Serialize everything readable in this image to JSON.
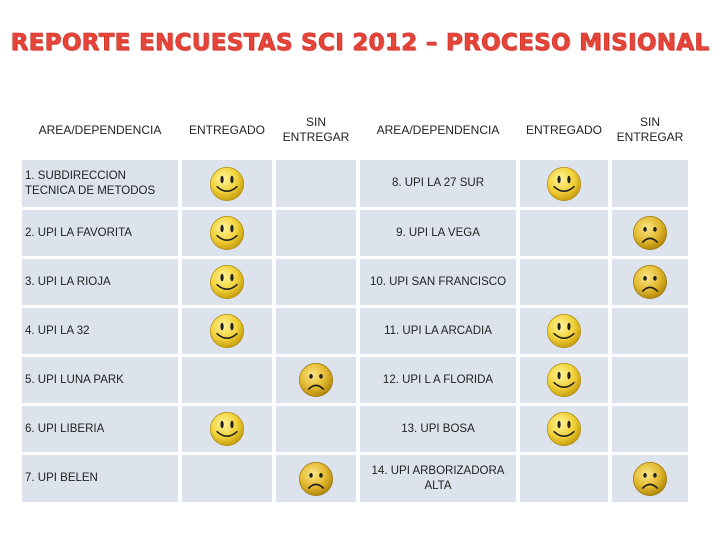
{
  "title": "REPORTE ENCUESTAS SCI 2012 – PROCESO MISIONAL",
  "headers": {
    "area": "AREA/DEPENDENCIA",
    "entregado": "ENTREGADO",
    "sin_entregar_1": "SIN",
    "sin_entregar_2": "ENTREGAR"
  },
  "rows": [
    {
      "left": {
        "area": "1. SUBDIRECCION TECNICA DE METODOS",
        "status": "entregado"
      },
      "right": {
        "area": "8. UPI LA 27 SUR",
        "status": "entregado"
      }
    },
    {
      "left": {
        "area": "2. UPI LA FAVORITA",
        "status": "entregado"
      },
      "right": {
        "area": "9. UPI LA VEGA",
        "status": "sin_entregar"
      }
    },
    {
      "left": {
        "area": "3. UPI LA RIOJA",
        "status": "entregado"
      },
      "right": {
        "area": "10. UPI SAN FRANCISCO",
        "status": "sin_entregar"
      }
    },
    {
      "left": {
        "area": "4. UPI LA 32",
        "status": "entregado"
      },
      "right": {
        "area": "11. UPI LA ARCADIA",
        "status": "entregado"
      }
    },
    {
      "left": {
        "area": "5. UPI LUNA PARK",
        "status": "sin_entregar"
      },
      "right": {
        "area": "12. UPI L A FLORIDA",
        "status": "entregado"
      }
    },
    {
      "left": {
        "area": "6. UPI LIBERIA",
        "status": "entregado"
      },
      "right": {
        "area": "13. UPI BOSA",
        "status": "entregado"
      }
    },
    {
      "left": {
        "area": "7. UPI BELEN",
        "status": "sin_entregar"
      },
      "right": {
        "area": "14. UPI ARBORIZADORA ALTA",
        "status": "sin_entregar"
      }
    }
  ],
  "icons": {
    "entregado": "happy-face-icon",
    "sin_entregar": "sad-face-icon"
  },
  "colors": {
    "title": "#e8453a",
    "cell": "#dde3ec",
    "happy_face": "#f2d23a",
    "sad_face": "#e3b930"
  }
}
